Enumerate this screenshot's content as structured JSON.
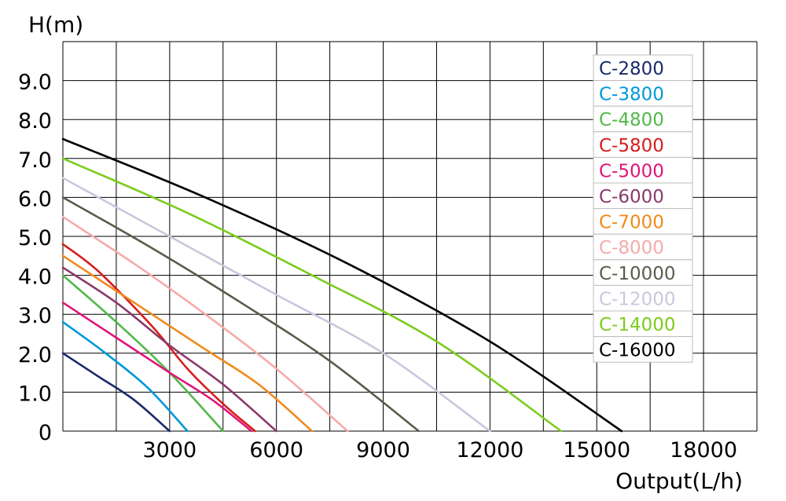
{
  "chart_data": {
    "type": "line",
    "ylabel": "H(m)",
    "xlabel": "Output(L/h)",
    "xlim": [
      0,
      19500
    ],
    "ylim": [
      0,
      10
    ],
    "x_ticks": [
      {
        "value": 3000,
        "label": "3000"
      },
      {
        "value": 6000,
        "label": "6000"
      },
      {
        "value": 9000,
        "label": "9000"
      },
      {
        "value": 12000,
        "label": "12000"
      },
      {
        "value": 15000,
        "label": "15000"
      },
      {
        "value": 18000,
        "label": "18000"
      }
    ],
    "y_ticks": [
      {
        "value": 0,
        "label": "0"
      },
      {
        "value": 1,
        "label": "1.0"
      },
      {
        "value": 2,
        "label": "2.0"
      },
      {
        "value": 3,
        "label": "3.0"
      },
      {
        "value": 4,
        "label": "4.0"
      },
      {
        "value": 5,
        "label": "5.0"
      },
      {
        "value": 6,
        "label": "6.0"
      },
      {
        "value": 7,
        "label": "7.0"
      },
      {
        "value": 8,
        "label": "8.0"
      },
      {
        "value": 9,
        "label": "9.0"
      }
    ],
    "grid": true,
    "legend_position": "top-right",
    "series": [
      {
        "name": "C-2800",
        "color": "#1b2a6b",
        "x": [
          0,
          1000,
          2000,
          3000
        ],
        "y": [
          2.0,
          1.4,
          0.8,
          0
        ]
      },
      {
        "name": "C-3800",
        "color": "#0098d8",
        "x": [
          0,
          1200,
          2400,
          3500
        ],
        "y": [
          2.8,
          2.0,
          1.1,
          0
        ]
      },
      {
        "name": "C-4800",
        "color": "#52b848",
        "x": [
          0,
          1500,
          3000,
          4500
        ],
        "y": [
          4.0,
          2.8,
          1.5,
          0
        ]
      },
      {
        "name": "C-5800",
        "color": "#d81c1c",
        "x": [
          0,
          1000,
          2500,
          3500,
          4500,
          5400
        ],
        "y": [
          4.8,
          4.1,
          2.7,
          1.6,
          0.7,
          0
        ]
      },
      {
        "name": "C-5000",
        "color": "#e0157a",
        "x": [
          0,
          1500,
          3000,
          4200,
          5300
        ],
        "y": [
          3.3,
          2.4,
          1.5,
          0.8,
          0
        ]
      },
      {
        "name": "C-6000",
        "color": "#8a3a6a",
        "x": [
          0,
          1500,
          3000,
          4500,
          6000
        ],
        "y": [
          4.2,
          3.3,
          2.2,
          1.2,
          0
        ]
      },
      {
        "name": "C-7000",
        "color": "#f08a1c",
        "x": [
          0,
          2000,
          4000,
          5500,
          7000
        ],
        "y": [
          4.5,
          3.3,
          2.1,
          1.2,
          0
        ]
      },
      {
        "name": "C-8000",
        "color": "#f6aaaa",
        "x": [
          0,
          2000,
          4000,
          6000,
          8000
        ],
        "y": [
          5.5,
          4.3,
          3.0,
          1.6,
          0
        ]
      },
      {
        "name": "C-10000",
        "color": "#5b5b4b",
        "x": [
          0,
          2500,
          5000,
          7500,
          10000
        ],
        "y": [
          6.0,
          4.7,
          3.3,
          1.8,
          0
        ]
      },
      {
        "name": "C-12000",
        "color": "#c8c8dc",
        "x": [
          0,
          3000,
          6000,
          9000,
          12000
        ],
        "y": [
          6.5,
          5.0,
          3.5,
          2.0,
          0
        ]
      },
      {
        "name": "C-14000",
        "color": "#7ccc1c",
        "x": [
          0,
          3500,
          7000,
          10500,
          14000
        ],
        "y": [
          7.0,
          5.6,
          4.0,
          2.3,
          0
        ]
      },
      {
        "name": "C-16000",
        "color": "#000000",
        "x": [
          0,
          4000,
          8000,
          12000,
          15700
        ],
        "y": [
          7.5,
          6.0,
          4.3,
          2.3,
          0
        ]
      }
    ]
  }
}
